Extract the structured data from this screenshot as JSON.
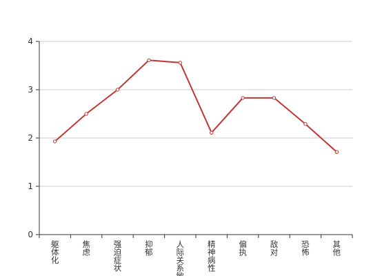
{
  "chart_data": {
    "type": "line",
    "categories": [
      "躯体化",
      "焦虑",
      "强迫症状",
      "抑郁",
      "人际关系敏感",
      "精神病性",
      "偏执",
      "敌对",
      "恐怖",
      "其他"
    ],
    "series": [
      {
        "color": "#c23531",
        "values": [
          1.93,
          2.5,
          3.0,
          3.61,
          3.56,
          2.11,
          2.83,
          2.83,
          2.29,
          1.71
        ]
      }
    ],
    "ylim": [
      0,
      4
    ],
    "yticks": [
      0,
      1,
      2,
      3,
      4
    ],
    "grid": true
  }
}
